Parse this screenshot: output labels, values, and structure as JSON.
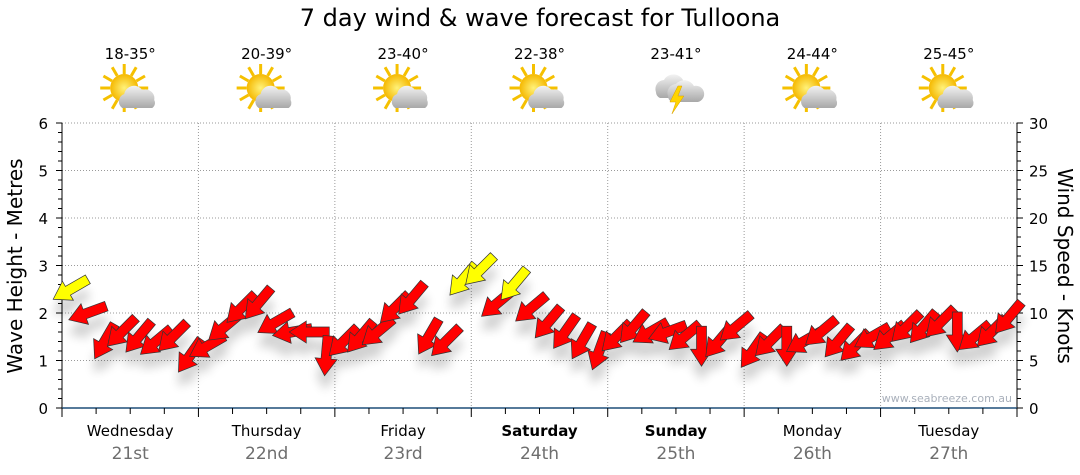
{
  "chart_data": {
    "type": "scatter",
    "title": "7 day wind & wave forecast for Tulloona",
    "ylabel": "Wave Height - Metres",
    "ylabel_right": "Wind Speed - Knots",
    "ylim": [
      0,
      6
    ],
    "ylim_right": [
      0,
      30
    ],
    "yticks": [
      "0",
      "1",
      "2",
      "3",
      "4",
      "5",
      "6"
    ],
    "yticks_right": [
      "0",
      "5",
      "10",
      "15",
      "20",
      "25",
      "30"
    ],
    "grid": true,
    "watermark": "www.seabreeze.com.au",
    "days": [
      {
        "name": "Wednesday",
        "date": "21st",
        "temp": "18-35°",
        "weather": "partly-cloudy",
        "bold": false
      },
      {
        "name": "Thursday",
        "date": "22nd",
        "temp": "20-39°",
        "weather": "partly-cloudy",
        "bold": false
      },
      {
        "name": "Friday",
        "date": "23rd",
        "temp": "23-40°",
        "weather": "partly-cloudy",
        "bold": false
      },
      {
        "name": "Saturday",
        "date": "24th",
        "temp": "22-38°",
        "weather": "partly-cloudy",
        "bold": true
      },
      {
        "name": "Sunday",
        "date": "25th",
        "temp": "23-41°",
        "weather": "thunderstorm",
        "bold": true
      },
      {
        "name": "Monday",
        "date": "26th",
        "temp": "24-44°",
        "weather": "partly-cloudy",
        "bold": false
      },
      {
        "name": "Tuesday",
        "date": "27th",
        "temp": "25-45°",
        "weather": "partly-cloudy",
        "bold": false
      }
    ],
    "wind_interval_hours": 3,
    "wind_speed_knots": [
      12.5,
      10,
      7,
      8,
      7.5,
      7,
      7.5,
      5.5,
      6.5,
      8.5,
      10.5,
      11,
      9,
      8,
      8,
      5.5,
      7,
      7.5,
      8,
      10.5,
      11.5,
      7.5,
      7,
      13.5,
      14.5,
      11,
      13,
      10.5,
      9,
      8,
      7,
      6,
      7.5,
      8.5,
      8,
      8,
      7.5,
      6.5,
      7,
      8.5,
      6,
      7,
      6.5,
      7,
      8,
      7,
      6.5,
      7.5,
      7.5,
      8.5,
      8.5,
      9,
      8,
      7.5,
      8,
      9.5
    ],
    "wind_from_deg": [
      60,
      70,
      30,
      45,
      40,
      50,
      45,
      35,
      60,
      50,
      45,
      40,
      60,
      80,
      90,
      5,
      45,
      40,
      50,
      45,
      40,
      30,
      45,
      40,
      45,
      50,
      40,
      50,
      40,
      35,
      30,
      20,
      45,
      40,
      60,
      70,
      50,
      0,
      40,
      50,
      35,
      45,
      0,
      60,
      50,
      40,
      45,
      60,
      50,
      45,
      40,
      45,
      0,
      50,
      45,
      40
    ],
    "colors": {
      "strong": "#ffff00",
      "normal": "#ff0000",
      "strong_threshold_knots": 12
    }
  }
}
